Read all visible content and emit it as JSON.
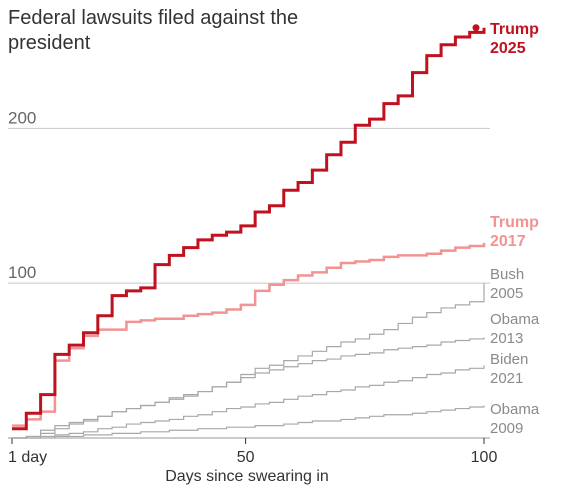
{
  "chart_data": {
    "type": "line",
    "step": "post",
    "title": "Federal lawsuits filed against the president",
    "x_label": "Days since swearing in",
    "x": [
      1,
      4,
      7,
      10,
      13,
      16,
      19,
      22,
      25,
      28,
      31,
      34,
      37,
      40,
      43,
      46,
      49,
      52,
      55,
      58,
      61,
      64,
      67,
      70,
      73,
      76,
      79,
      82,
      85,
      88,
      91,
      94,
      97,
      100
    ],
    "xlim": [
      1,
      100
    ],
    "xticks": [
      {
        "value": 1,
        "label": "1 day"
      },
      50,
      100
    ],
    "ylim": [
      0,
      270
    ],
    "yticks": [
      100,
      200
    ],
    "grid": true,
    "series": [
      {
        "name": "Trump 2025",
        "color": "#c0111f",
        "values": [
          6,
          16,
          28,
          54,
          60,
          68,
          79,
          92,
          95,
          97,
          112,
          118,
          123,
          128,
          131,
          133,
          137,
          146,
          150,
          160,
          165,
          173,
          183,
          191,
          202,
          206,
          216,
          221,
          236,
          247,
          254,
          259,
          262,
          265
        ]
      },
      {
        "name": "Trump 2017",
        "color": "#f29393",
        "values": [
          8,
          12,
          17,
          50,
          58,
          66,
          70,
          70,
          75,
          76,
          77,
          77,
          79,
          80,
          81,
          83,
          86,
          95,
          99,
          102,
          105,
          107,
          110,
          113,
          114,
          115,
          117,
          118,
          118,
          119,
          121,
          123,
          124,
          126
        ]
      },
      {
        "name": "Bush 2005",
        "color": "#a8a8a8",
        "values": [
          0,
          1,
          5,
          8,
          10,
          12,
          14,
          17,
          19,
          21,
          23,
          25,
          27,
          30,
          33,
          36,
          41,
          45,
          47,
          50,
          53,
          56,
          59,
          62,
          64,
          67,
          70,
          74,
          78,
          81,
          84,
          86,
          88,
          100
        ]
      },
      {
        "name": "Obama 2013",
        "color": "#a8a8a8",
        "values": [
          0,
          1,
          3,
          6,
          9,
          11,
          14,
          17,
          19,
          21,
          23,
          26,
          28,
          30,
          33,
          36,
          39,
          42,
          44,
          46,
          48,
          50,
          51,
          53,
          54,
          55,
          57,
          58,
          59,
          60,
          62,
          63,
          64,
          65
        ]
      },
      {
        "name": "Biden 2021",
        "color": "#a8a8a8",
        "values": [
          0,
          0,
          1,
          2,
          3,
          4,
          6,
          7,
          9,
          10,
          11,
          12,
          14,
          15,
          17,
          19,
          20,
          22,
          23,
          25,
          27,
          28,
          30,
          31,
          33,
          34,
          36,
          37,
          39,
          41,
          42,
          44,
          45,
          47
        ]
      },
      {
        "name": "Obama 2009",
        "color": "#a8a8a8",
        "values": [
          0,
          0,
          0,
          1,
          1,
          2,
          2,
          3,
          3,
          4,
          4,
          5,
          5,
          6,
          6,
          7,
          7,
          8,
          8,
          9,
          10,
          11,
          11,
          12,
          13,
          14,
          15,
          15,
          16,
          17,
          18,
          19,
          20,
          21
        ]
      }
    ]
  }
}
